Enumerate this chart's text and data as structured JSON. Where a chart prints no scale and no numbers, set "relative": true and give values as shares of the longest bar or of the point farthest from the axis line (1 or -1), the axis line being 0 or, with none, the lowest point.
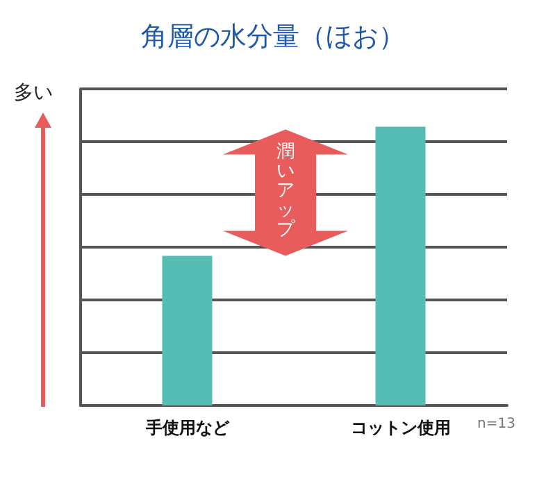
{
  "chart_data": {
    "type": "bar",
    "title": "角層の水分量（ほお）",
    "ylabel": "多い",
    "categories": [
      "手使用など",
      "コットン使用"
    ],
    "values": [
      0.537,
      1
    ],
    "color": "#56bdb5",
    "relative": true,
    "grid": true,
    "annotations": [
      "潤いアップ",
      "n=13"
    ]
  }
}
